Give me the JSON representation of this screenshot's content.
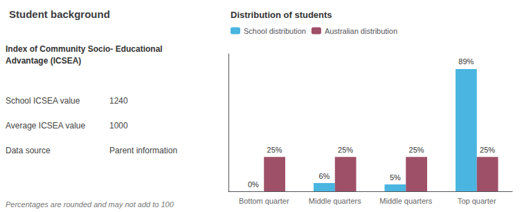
{
  "chart_data": {
    "type": "bar",
    "title": "Student background",
    "subtitle": "Distribution of students",
    "annotations": [
      [
        "Index of Community Socio- Educational\nAdvantage (ICSEA)"
      ],
      [
        "School ICSEA value",
        "1240"
      ],
      [
        "Average ICSEA value",
        "1000"
      ],
      [
        "Data source",
        "Parent information"
      ],
      [
        "Percentages are rounded and may not add to 100"
      ]
    ],
    "categories": [
      "Bottom quarter",
      "Middle quarters",
      "Middle quarters",
      "Top quarter"
    ],
    "series": [
      {
        "name": "School distribution",
        "color": "#4ab5e0",
        "values": [
          0,
          6,
          5,
          89
        ],
        "value_labels": [
          "0%",
          "6%",
          "5%",
          "89%"
        ]
      },
      {
        "name": "Australian distribution",
        "color": "#9e5068",
        "values": [
          25,
          25,
          25,
          25
        ],
        "value_labels": [
          "25%",
          "25%",
          "25%",
          "25%"
        ]
      }
    ],
    "ylim": [
      0,
      100
    ],
    "yticks": [],
    "grid": false,
    "legend": "top",
    "data_labels": true,
    "tick_labels": "x"
  }
}
